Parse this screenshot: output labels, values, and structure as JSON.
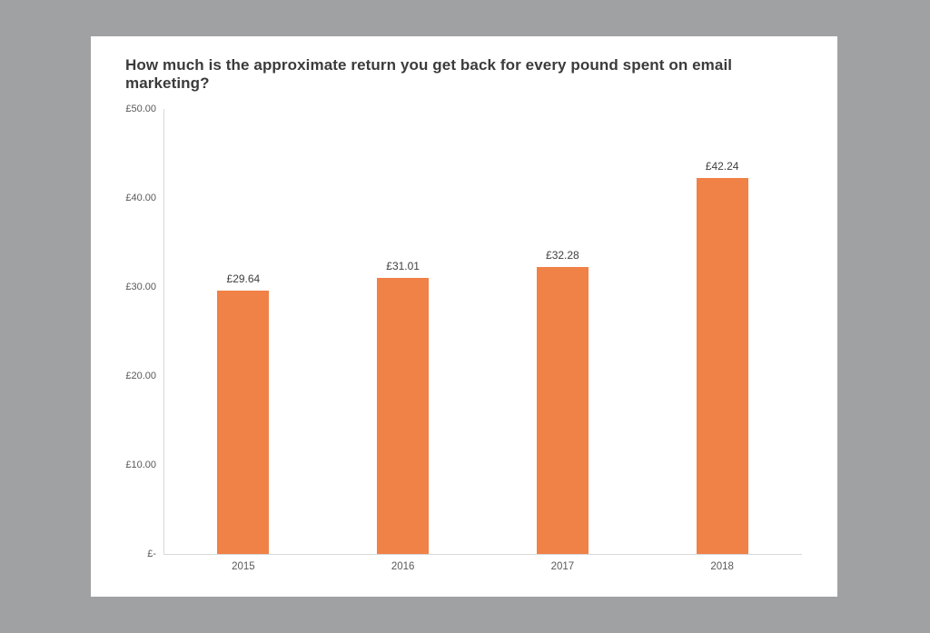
{
  "page": {
    "background_color": "#A0A1A3",
    "panel_color": "#FFFFFF"
  },
  "chart_data": {
    "type": "bar",
    "title": "How much is the approximate return you get back for every pound spent on email marketing?",
    "xlabel": "",
    "ylabel": "",
    "categories": [
      "2015",
      "2016",
      "2017",
      "2018"
    ],
    "values": [
      29.64,
      31.01,
      32.28,
      42.24
    ],
    "value_labels": [
      "£29.64",
      "£31.01",
      "£32.28",
      "£42.24"
    ],
    "ylim": [
      0,
      50
    ],
    "yticks": [
      {
        "value": 0,
        "label": "£-"
      },
      {
        "value": 10,
        "label": "£10.00"
      },
      {
        "value": 20,
        "label": "£20.00"
      },
      {
        "value": 30,
        "label": "£30.00"
      },
      {
        "value": 40,
        "label": "£40.00"
      },
      {
        "value": 50,
        "label": "£50.00"
      }
    ],
    "bar_color": "#F08147",
    "axis_color": "#D9D9D9",
    "title_color": "#3B3B3B",
    "tick_label_color": "#595959",
    "value_label_color": "#404040",
    "grid": false,
    "legend": false
  }
}
